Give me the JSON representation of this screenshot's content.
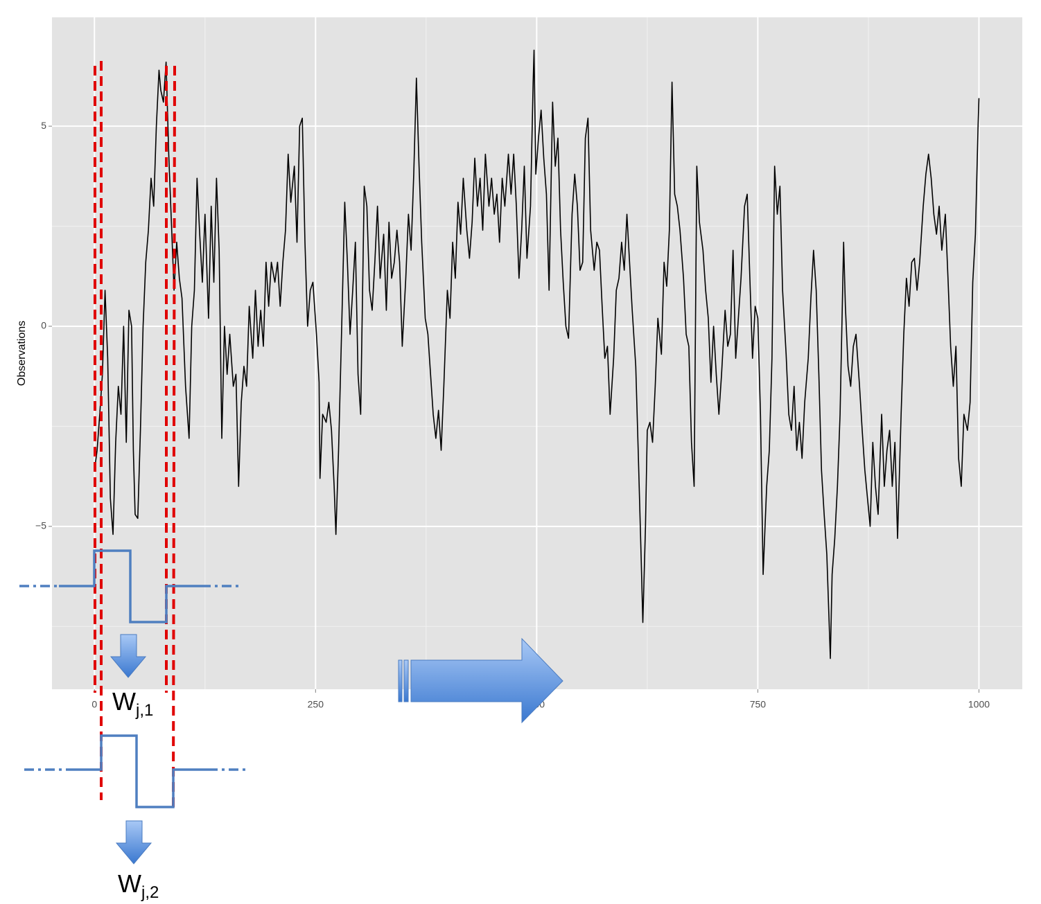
{
  "chart_data": {
    "type": "line",
    "y_label": "Observations",
    "x": [
      0,
      3,
      6,
      9,
      12,
      15,
      18,
      21,
      24,
      27,
      30,
      33,
      36,
      39,
      42,
      44,
      46,
      49,
      52,
      55,
      58,
      61,
      64,
      67,
      70,
      73,
      75,
      78,
      81,
      84,
      87,
      90,
      93,
      96,
      99,
      103,
      107,
      110,
      113,
      116,
      119,
      122,
      125,
      129,
      132,
      135,
      138,
      141,
      144,
      147,
      150,
      153,
      157,
      160,
      163,
      166,
      169,
      172,
      175,
      179,
      182,
      185,
      188,
      191,
      194,
      197,
      200,
      204,
      207,
      210,
      213,
      216,
      219,
      222,
      226,
      229,
      232,
      235,
      238,
      241,
      244,
      247,
      251,
      254,
      255,
      258,
      262,
      265,
      268,
      271,
      273,
      276,
      279,
      283,
      286,
      289,
      292,
      295,
      298,
      301,
      305,
      308,
      311,
      314,
      317,
      320,
      323,
      327,
      330,
      333,
      336,
      339,
      342,
      345,
      348,
      352,
      355,
      358,
      361,
      364,
      367,
      370,
      374,
      377,
      380,
      383,
      386,
      389,
      392,
      395,
      399,
      402,
      405,
      408,
      411,
      414,
      417,
      421,
      424,
      427,
      430,
      433,
      436,
      439,
      442,
      446,
      449,
      452,
      455,
      458,
      461,
      464,
      468,
      471,
      474,
      477,
      480,
      483,
      486,
      489,
      493,
      496,
      497,
      499,
      502,
      505,
      508,
      511,
      514,
      518,
      521,
      524,
      527,
      530,
      533,
      536,
      540,
      543,
      546,
      549,
      552,
      555,
      558,
      561,
      565,
      568,
      571,
      574,
      577,
      580,
      583,
      587,
      590,
      593,
      596,
      599,
      602,
      605,
      608,
      612,
      615,
      618,
      620,
      623,
      625,
      628,
      631,
      634,
      637,
      641,
      644,
      647,
      650,
      653,
      656,
      659,
      662,
      666,
      669,
      672,
      675,
      678,
      681,
      684,
      688,
      691,
      694,
      697,
      700,
      703,
      706,
      709,
      713,
      716,
      719,
      722,
      725,
      728,
      731,
      735,
      738,
      741,
      744,
      747,
      750,
      753,
      756,
      760,
      763,
      766,
      769,
      772,
      775,
      778,
      782,
      785,
      788,
      791,
      794,
      797,
      800,
      803,
      807,
      810,
      813,
      816,
      819,
      822,
      825,
      828,
      832,
      834,
      837,
      840,
      843,
      847,
      849,
      852,
      855,
      858,
      861,
      865,
      868,
      871,
      874,
      877,
      880,
      883,
      886,
      890,
      893,
      896,
      899,
      902,
      905,
      908,
      912,
      915,
      918,
      921,
      924,
      927,
      930,
      933,
      937,
      940,
      943,
      946,
      949,
      952,
      955,
      958,
      962,
      965,
      968,
      971,
      974,
      977,
      980,
      983,
      987,
      990,
      993,
      996,
      999,
      1000
    ],
    "series": [
      {
        "color": "#000000",
        "values": [
          -3.6,
          -3.1,
          -2.2,
          -1.2,
          0.9,
          -0.8,
          -4.3,
          -5.2,
          -2.9,
          -1.5,
          -2.2,
          0.0,
          -2.9,
          0.4,
          0.0,
          -3.1,
          -4.7,
          -4.8,
          -2.6,
          0.0,
          1.6,
          2.4,
          3.7,
          3.0,
          5.0,
          6.4,
          5.9,
          5.6,
          6.6,
          4.3,
          2.6,
          0.9,
          2.1,
          1.2,
          0.7,
          -1.5,
          -2.8,
          0.0,
          0.9,
          3.7,
          2.3,
          1.1,
          2.8,
          0.2,
          3.0,
          1.1,
          3.7,
          1.9,
          -2.8,
          0.0,
          -1.2,
          -0.2,
          -1.5,
          -1.2,
          -4.0,
          -1.9,
          -1.0,
          -1.5,
          0.5,
          -0.8,
          0.9,
          -0.5,
          0.4,
          -0.5,
          1.6,
          0.5,
          1.6,
          1.1,
          1.6,
          0.5,
          1.6,
          2.4,
          4.3,
          3.1,
          4.0,
          2.1,
          5.0,
          5.2,
          2.1,
          0.0,
          0.9,
          1.1,
          -0.2,
          -1.4,
          -3.8,
          -2.2,
          -2.4,
          -1.9,
          -2.6,
          -4.0,
          -5.2,
          -3.1,
          -0.5,
          3.1,
          1.6,
          -0.2,
          0.9,
          2.1,
          -1.2,
          -2.2,
          3.5,
          3.0,
          0.9,
          0.4,
          1.6,
          3.0,
          1.2,
          2.3,
          0.4,
          2.6,
          1.2,
          1.6,
          2.4,
          1.6,
          -0.5,
          1.2,
          2.8,
          1.9,
          3.8,
          6.2,
          4.0,
          2.1,
          0.2,
          -0.2,
          -1.2,
          -2.2,
          -2.8,
          -2.1,
          -3.1,
          -1.5,
          0.9,
          0.2,
          2.1,
          1.2,
          3.1,
          2.3,
          3.7,
          2.4,
          1.7,
          2.6,
          4.2,
          3.0,
          3.7,
          2.4,
          4.3,
          3.0,
          3.7,
          2.8,
          3.3,
          2.1,
          3.7,
          3.0,
          4.3,
          3.3,
          4.3,
          3.0,
          1.2,
          2.4,
          4.0,
          1.7,
          3.0,
          6.1,
          6.9,
          3.8,
          4.7,
          5.4,
          4.2,
          3.3,
          0.9,
          5.6,
          4.0,
          4.7,
          2.4,
          1.1,
          0.0,
          -0.3,
          2.8,
          3.8,
          3.0,
          1.4,
          1.6,
          4.7,
          5.2,
          2.4,
          1.4,
          2.1,
          1.9,
          0.5,
          -0.8,
          -0.5,
          -2.2,
          -0.8,
          0.9,
          1.2,
          2.1,
          1.4,
          2.8,
          1.6,
          0.4,
          -1.0,
          -3.3,
          -5.7,
          -7.4,
          -5.0,
          -2.6,
          -2.4,
          -2.9,
          -1.5,
          0.2,
          -0.7,
          1.6,
          1.0,
          2.4,
          6.1,
          3.3,
          3.0,
          2.4,
          1.2,
          -0.2,
          -0.5,
          -2.9,
          -4.0,
          4.0,
          2.6,
          1.9,
          0.9,
          0.2,
          -1.4,
          0.0,
          -1.2,
          -2.2,
          -1.2,
          0.4,
          -0.5,
          -0.2,
          1.9,
          -0.8,
          0.2,
          1.2,
          3.0,
          3.3,
          1.2,
          -0.8,
          0.5,
          0.2,
          -2.2,
          -6.2,
          -4.0,
          -3.1,
          -0.8,
          4.0,
          2.8,
          3.5,
          0.9,
          -0.7,
          -2.2,
          -2.6,
          -1.5,
          -3.1,
          -2.4,
          -3.3,
          -1.9,
          -0.8,
          0.7,
          1.9,
          0.9,
          -1.2,
          -3.6,
          -4.7,
          -5.7,
          -8.3,
          -6.2,
          -5.3,
          -4.0,
          -2.2,
          2.1,
          0.5,
          -1.0,
          -1.5,
          -0.5,
          -0.2,
          -1.5,
          -2.6,
          -3.6,
          -4.3,
          -5.0,
          -2.9,
          -4.0,
          -4.7,
          -2.2,
          -4.0,
          -3.1,
          -2.6,
          -4.0,
          -2.9,
          -5.3,
          -2.2,
          -0.2,
          1.2,
          0.5,
          1.6,
          1.7,
          0.9,
          1.6,
          3.0,
          3.8,
          4.3,
          3.7,
          2.8,
          2.3,
          3.0,
          1.9,
          2.8,
          1.2,
          -0.5,
          -1.5,
          -0.5,
          -3.3,
          -4.0,
          -2.2,
          -2.6,
          -1.9,
          1.1,
          2.3,
          5.0,
          5.7
        ]
      }
    ],
    "xlim": [
      -48,
      1049
    ],
    "ylim": [
      -9.07,
      7.72
    ],
    "xticks": [
      0,
      250,
      500,
      750,
      1000
    ],
    "yticks": [
      {
        "value": -5,
        "label": "−5"
      },
      0,
      5
    ],
    "minor_xticks": [
      125,
      375,
      625,
      875
    ],
    "minor_yticks": [
      -7.5,
      -2.5,
      2.5
    ],
    "grid": true,
    "panel_color": "#e3e3e3",
    "annotations": [
      {
        "text": "W",
        "subscript": "j,1"
      },
      {
        "text": "W",
        "subscript": "j,2"
      }
    ]
  }
}
